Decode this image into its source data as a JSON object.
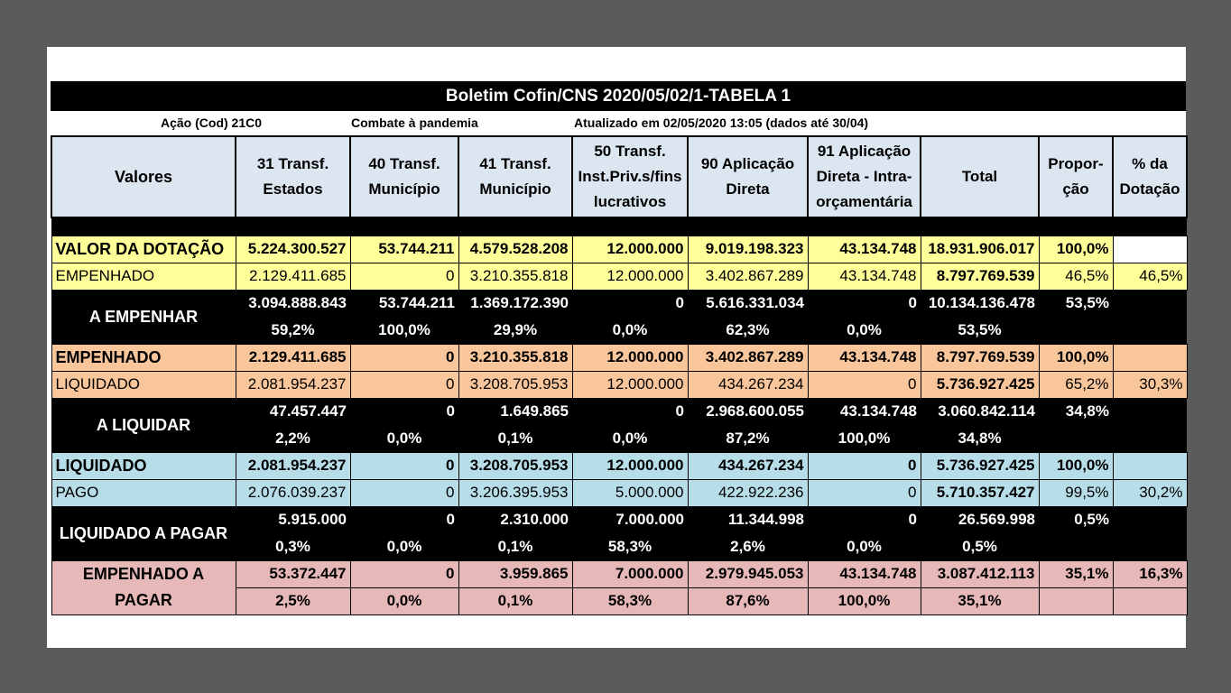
{
  "title": "Boletim Cofin/CNS 2020/05/02/1-TABELA 1",
  "subtitle": {
    "acao": "Ação (Cod) 21C0",
    "descricao": "Combate à pandemia",
    "atualizado": "Atualizado em 02/05/2020 13:05 (dados até 30/04)"
  },
  "headers": [
    "Valores",
    "31 Transf. Estados",
    "40 Transf. Município",
    "41 Transf. Município",
    "50 Transf. Inst.Priv.s/fins lucrativos",
    "90 Aplicação Direta",
    "91 Aplicação Direta - Intra-orçamentária",
    "Total",
    "Propor-ção",
    "% da Dotação"
  ],
  "rows": {
    "dotacao": {
      "label": "VALOR DA DOTAÇÃO",
      "values": [
        "5.224.300.527",
        "53.744.211",
        "4.579.528.208",
        "12.000.000",
        "9.019.198.323",
        "43.134.748",
        "18.931.906.017",
        "100,0%",
        ""
      ]
    },
    "empenhado1": {
      "label": "EMPENHADO",
      "values": [
        "2.129.411.685",
        "0",
        "3.210.355.818",
        "12.000.000",
        "3.402.867.289",
        "43.134.748",
        "8.797.769.539",
        "46,5%",
        "46,5%"
      ]
    },
    "a_empenhar": {
      "label": "A EMPENHAR",
      "values": [
        "3.094.888.843",
        "53.744.211",
        "1.369.172.390",
        "0",
        "5.616.331.034",
        "0",
        "10.134.136.478",
        "53,5%",
        ""
      ],
      "pcts": [
        "59,2%",
        "100,0%",
        "29,9%",
        "0,0%",
        "62,3%",
        "0,0%",
        "53,5%",
        "",
        ""
      ]
    },
    "empenhado2": {
      "label": "EMPENHADO",
      "values": [
        "2.129.411.685",
        "0",
        "3.210.355.818",
        "12.000.000",
        "3.402.867.289",
        "43.134.748",
        "8.797.769.539",
        "100,0%",
        ""
      ]
    },
    "liquidado1": {
      "label": "LIQUIDADO",
      "values": [
        "2.081.954.237",
        "0",
        "3.208.705.953",
        "12.000.000",
        "434.267.234",
        "0",
        "5.736.927.425",
        "65,2%",
        "30,3%"
      ]
    },
    "a_liquidar": {
      "label": "A LIQUIDAR",
      "values": [
        "47.457.447",
        "0",
        "1.649.865",
        "0",
        "2.968.600.055",
        "43.134.748",
        "3.060.842.114",
        "34,8%",
        ""
      ],
      "pcts": [
        "2,2%",
        "0,0%",
        "0,1%",
        "0,0%",
        "87,2%",
        "100,0%",
        "34,8%",
        "",
        ""
      ]
    },
    "liquidado2": {
      "label": "LIQUIDADO",
      "values": [
        "2.081.954.237",
        "0",
        "3.208.705.953",
        "12.000.000",
        "434.267.234",
        "0",
        "5.736.927.425",
        "100,0%",
        ""
      ]
    },
    "pago": {
      "label": "PAGO",
      "values": [
        "2.076.039.237",
        "0",
        "3.206.395.953",
        "5.000.000",
        "422.922.236",
        "0",
        "5.710.357.427",
        "99,5%",
        "30,2%"
      ]
    },
    "liq_a_pagar": {
      "label": "LIQUIDADO A PAGAR",
      "values": [
        "5.915.000",
        "0",
        "2.310.000",
        "7.000.000",
        "11.344.998",
        "0",
        "26.569.998",
        "0,5%",
        ""
      ],
      "pcts": [
        "0,3%",
        "0,0%",
        "0,1%",
        "58,3%",
        "2,6%",
        "0,0%",
        "0,5%",
        "",
        ""
      ]
    },
    "emp_a_pagar": {
      "label1": "EMPENHADO A",
      "label2": "PAGAR",
      "values": [
        "53.372.447",
        "0",
        "3.959.865",
        "7.000.000",
        "2.979.945.053",
        "43.134.748",
        "3.087.412.113",
        "35,1%",
        "16,3%"
      ],
      "pcts": [
        "2,5%",
        "0,0%",
        "0,1%",
        "58,3%",
        "87,6%",
        "100,0%",
        "35,1%",
        "",
        ""
      ]
    }
  },
  "colors": {
    "yellow": "#ffff99",
    "peach": "#f9c59b",
    "blue": "#b7dde8",
    "pink": "#e6b8b7",
    "header": "#dce6f1"
  }
}
